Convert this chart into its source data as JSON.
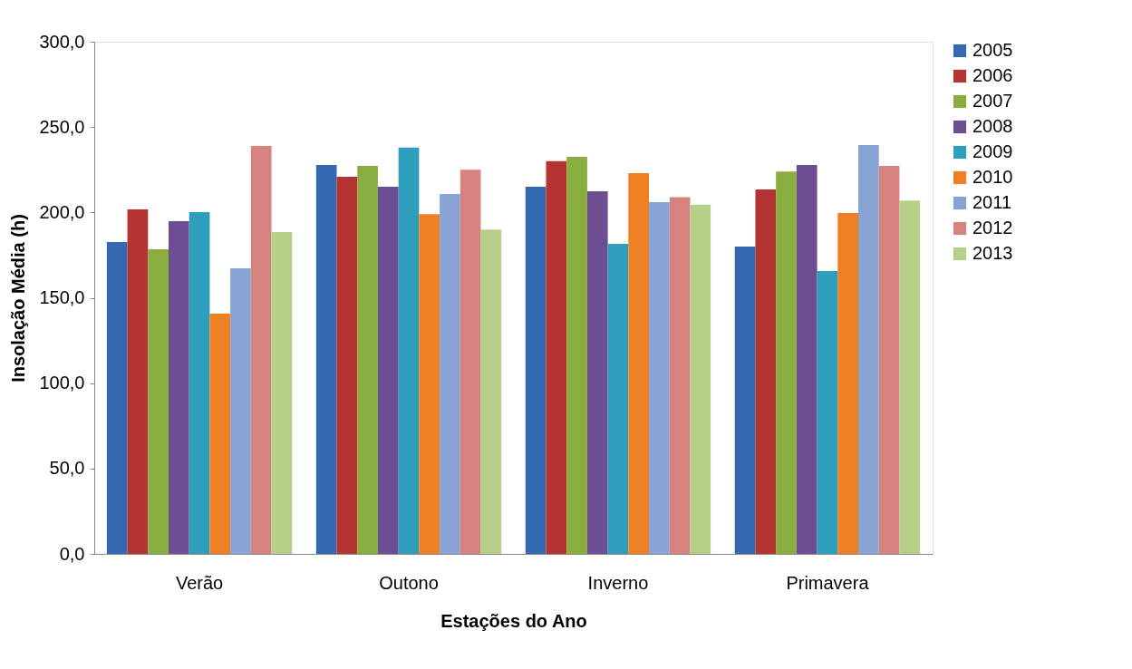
{
  "chart_data": {
    "type": "bar",
    "xlabel": "Estações do Ano",
    "ylabel": "Insolação Média (h)",
    "categories": [
      "Verão",
      "Outono",
      "Inverno",
      "Primavera"
    ],
    "series": [
      {
        "name": "2005",
        "color": "#3468b0",
        "values": [
          182.7,
          227.8,
          215,
          180
        ]
      },
      {
        "name": "2006",
        "color": "#b33431",
        "values": [
          201.8,
          220.9,
          230,
          213.5
        ]
      },
      {
        "name": "2007",
        "color": "#8aad3f",
        "values": [
          178.4,
          227.3,
          232.6,
          224
        ]
      },
      {
        "name": "2008",
        "color": "#6d4e93",
        "values": [
          194.9,
          215,
          212.4,
          227.8
        ]
      },
      {
        "name": "2009",
        "color": "#2f9dbc",
        "values": [
          200.2,
          238,
          181.6,
          165.7
        ]
      },
      {
        "name": "2010",
        "color": "#ee7f22",
        "values": [
          140.7,
          199,
          223,
          199.7
        ]
      },
      {
        "name": "2011",
        "color": "#87a4d4",
        "values": [
          167.3,
          210.8,
          206,
          239.5
        ]
      },
      {
        "name": "2012",
        "color": "#d6837f",
        "values": [
          239,
          225,
          209,
          227.3
        ]
      },
      {
        "name": "2013",
        "color": "#b6d08a",
        "values": [
          188.5,
          190,
          204.5,
          207
        ]
      }
    ],
    "ylim": [
      0,
      300
    ],
    "yticks": [
      {
        "value": 0,
        "label": "0,0"
      },
      {
        "value": 50,
        "label": "50,0"
      },
      {
        "value": 100,
        "label": "100,0"
      },
      {
        "value": 150,
        "label": "150,0"
      },
      {
        "value": 200,
        "label": "200,0"
      },
      {
        "value": 250,
        "label": "250,0"
      },
      {
        "value": 300,
        "label": "300,0"
      }
    ],
    "grid": false,
    "legend": "right"
  }
}
